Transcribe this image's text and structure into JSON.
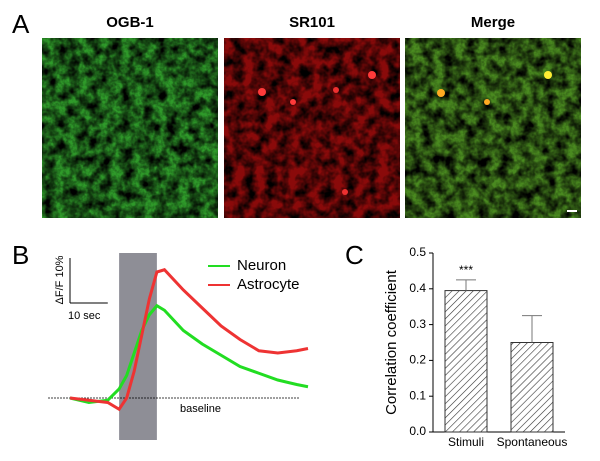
{
  "panel_a": {
    "letter": "A",
    "images": [
      {
        "label": "OGB-1"
      },
      {
        "label": "SR101"
      },
      {
        "label": "Merge"
      }
    ]
  },
  "chart_data": [
    {
      "type": "line",
      "panel": "B",
      "x": [
        0,
        5,
        10,
        13,
        15,
        17,
        19,
        21,
        23,
        25,
        30,
        35,
        40,
        45,
        50,
        55,
        60,
        63
      ],
      "series": [
        {
          "name": "Neuron",
          "color": "#22dd22",
          "values": [
            0,
            -1,
            -0.5,
            2,
            5,
            10,
            15,
            18.5,
            20.5,
            19.5,
            15,
            12,
            9.5,
            7,
            5.5,
            4,
            3,
            2.5
          ]
        },
        {
          "name": "Astrocyte",
          "color": "#ee3333",
          "values": [
            0,
            -0.5,
            -1,
            -2.5,
            0,
            6,
            14,
            22,
            28,
            28.5,
            24,
            20,
            16,
            13,
            10.5,
            10,
            10.5,
            11
          ]
        }
      ],
      "xlim": [
        0,
        63
      ],
      "ylim": [
        -3,
        30
      ],
      "stimulus_window": [
        13,
        23
      ],
      "baseline_value": 0,
      "baseline_label": "baseline",
      "scale_bar_y": {
        "value": 10,
        "label": "ΔF/F 10%"
      },
      "scale_bar_x": {
        "value": 10,
        "label": "10 sec"
      }
    },
    {
      "type": "bar",
      "panel": "C",
      "categories": [
        "Stimuli",
        "Spontaneous"
      ],
      "values": [
        0.395,
        0.25
      ],
      "errors": [
        0.03,
        0.075
      ],
      "annotation": "***",
      "ylabel": "Correlation coefficient",
      "ylim": [
        0,
        0.5
      ],
      "yticks": [
        {
          "value": 0,
          "label": "0.0"
        },
        0.1,
        0.2,
        0.3,
        0.4,
        0.5
      ],
      "color": "#333333"
    }
  ]
}
